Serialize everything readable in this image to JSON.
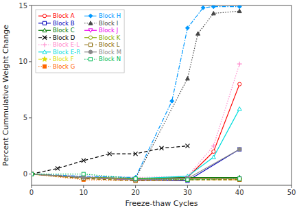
{
  "chart_data": {
    "type": "line",
    "xlabel": "Freeze-thaw Cycles",
    "ylabel": "Percent Cummulative Weight Change",
    "xlim": [
      0,
      50
    ],
    "ylim": [
      -1,
      15
    ],
    "xticks": [
      0,
      10,
      20,
      30,
      40,
      50
    ],
    "yticks": [
      0,
      5,
      10,
      15
    ],
    "grid": false,
    "legend": "upper left",
    "series": [
      {
        "name": "Block A",
        "color": "#ff0000",
        "line_style": "solid",
        "marker": "circle-open",
        "x": [
          0,
          10,
          20,
          30,
          35,
          40
        ],
        "values": [
          0.0,
          -0.3,
          -0.4,
          -0.3,
          2.0,
          8.0
        ]
      },
      {
        "name": "Block B",
        "color": "#0000bb",
        "line_style": "solid",
        "marker": "square-open",
        "x": [
          0,
          10,
          20,
          30,
          40
        ],
        "values": [
          0.0,
          -0.3,
          -0.5,
          -0.6,
          2.2
        ]
      },
      {
        "name": "Block C",
        "color": "#007700",
        "line_style": "solid",
        "marker": "triangle-up-open",
        "x": [
          0,
          10,
          20,
          30,
          40
        ],
        "values": [
          0.0,
          -0.3,
          -0.4,
          -0.3,
          -0.3
        ]
      },
      {
        "name": "Block D",
        "color": "#000000",
        "line_style": "dashed",
        "marker": "x",
        "x": [
          0,
          5,
          10,
          15,
          20,
          25,
          30
        ],
        "values": [
          0.0,
          0.5,
          1.2,
          1.8,
          1.8,
          2.3,
          2.5
        ]
      },
      {
        "name": "Block E-L",
        "color": "#ff88cc",
        "line_style": "dotted",
        "marker": "plus",
        "x": [
          0,
          10,
          20,
          30,
          35,
          40
        ],
        "values": [
          0.0,
          -0.2,
          -0.3,
          -0.2,
          2.5,
          9.8
        ]
      },
      {
        "name": "Block E-R",
        "color": "#00dddd",
        "line_style": "solid",
        "marker": "triangle-up-open",
        "x": [
          0,
          10,
          20,
          30,
          35,
          40
        ],
        "values": [
          0.0,
          -0.3,
          -0.4,
          -0.2,
          1.5,
          5.8
        ]
      },
      {
        "name": "Block F",
        "color": "#dddd00",
        "line_style": "dashed",
        "marker": "star",
        "x": [
          0,
          10,
          20,
          30,
          40
        ],
        "values": [
          0.0,
          -0.4,
          -0.5,
          -0.5,
          -0.5
        ]
      },
      {
        "name": "Block G",
        "color": "#ff6600",
        "line_style": "dotted",
        "marker": "square",
        "x": [
          0,
          10,
          20,
          30,
          40
        ],
        "values": [
          0.0,
          -0.5,
          -0.6,
          -0.5,
          -0.5
        ]
      },
      {
        "name": "Block H",
        "color": "#0099ff",
        "line_style": "dashdot",
        "marker": "diamond",
        "x": [
          0,
          10,
          20,
          27,
          30,
          33,
          35,
          40
        ],
        "values": [
          0.0,
          -0.2,
          -0.3,
          6.5,
          13.0,
          14.8,
          14.9,
          14.9
        ]
      },
      {
        "name": "Block I",
        "color": "#444444",
        "line_style": "dotted",
        "marker": "triangle-up",
        "x": [
          0,
          10,
          20,
          30,
          32,
          35,
          40
        ],
        "values": [
          0.0,
          -0.3,
          -0.4,
          8.5,
          12.5,
          14.3,
          14.5
        ]
      },
      {
        "name": "Block J",
        "color": "#ee00ee",
        "line_style": "solid",
        "marker": "triangle-down-open",
        "x": [
          0,
          10,
          20,
          30,
          40
        ],
        "values": [
          0.0,
          -0.3,
          -0.5,
          -0.4,
          -0.4
        ]
      },
      {
        "name": "Block K",
        "color": "#88aa00",
        "line_style": "solid",
        "marker": "circle-open",
        "x": [
          0,
          10,
          20,
          30,
          40
        ],
        "values": [
          0.0,
          -0.3,
          -0.4,
          -0.4,
          -0.4
        ]
      },
      {
        "name": "Block L",
        "color": "#886600",
        "line_style": "dashed",
        "marker": "square-open",
        "x": [
          0,
          10,
          20,
          30,
          40
        ],
        "values": [
          0.0,
          -0.4,
          -0.6,
          -0.5,
          -0.5
        ]
      },
      {
        "name": "Block M",
        "color": "#888888",
        "line_style": "solid",
        "marker": "hexagon",
        "x": [
          0,
          10,
          20,
          30,
          40
        ],
        "values": [
          0.0,
          -0.3,
          -0.5,
          -0.4,
          2.2
        ]
      },
      {
        "name": "Block N",
        "color": "#00bb55",
        "line_style": "dotted",
        "marker": "square-open",
        "x": [
          0,
          10,
          20,
          30,
          40
        ],
        "values": [
          0.0,
          0.0,
          -0.4,
          -0.5,
          -0.4
        ]
      }
    ]
  }
}
